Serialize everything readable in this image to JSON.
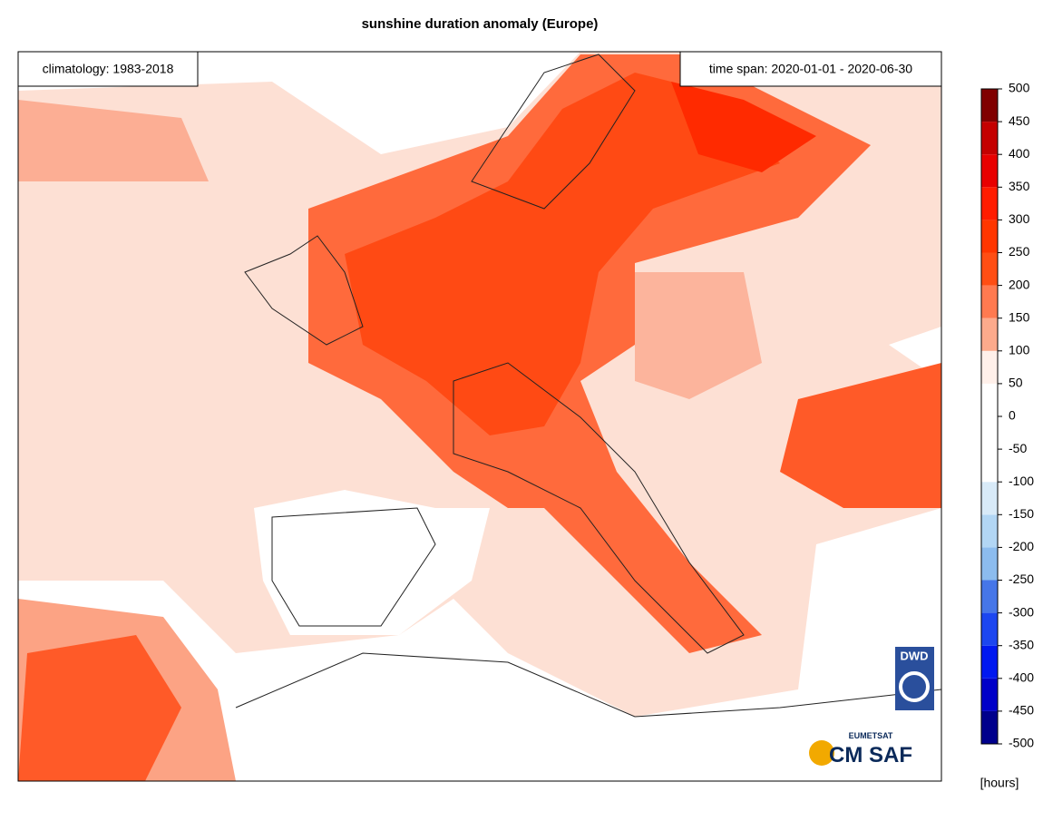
{
  "title": "sunshine duration anomaly (Europe)",
  "climatology": "climatology: 1983-2018",
  "time_span": "time span: 2020-01-01 - 2020-06-30",
  "colorbar": {
    "ticks": [
      -500,
      -450,
      -400,
      -350,
      -300,
      -250,
      -200,
      -150,
      -100,
      -50,
      0,
      50,
      100,
      150,
      200,
      250,
      300,
      350,
      400,
      450,
      500
    ],
    "colors": [
      "#00008c",
      "#0000c8",
      "#0018f0",
      "#1c46f0",
      "#4676e8",
      "#8cbcee",
      "#b2d6f4",
      "#d8eaf8",
      "#ffffff",
      "#ffffff",
      "#ffffff",
      "#fff0ea",
      "#fcaa8c",
      "#ff7a50",
      "#ff4e14",
      "#ff3600",
      "#ff1c00",
      "#e80000",
      "#c40000",
      "#800000"
    ],
    "unit": "[hours]"
  },
  "logos": {
    "dwd": "DWD",
    "eumetsat": "EUMETSAT",
    "cmsaf": "CM SAF"
  }
}
